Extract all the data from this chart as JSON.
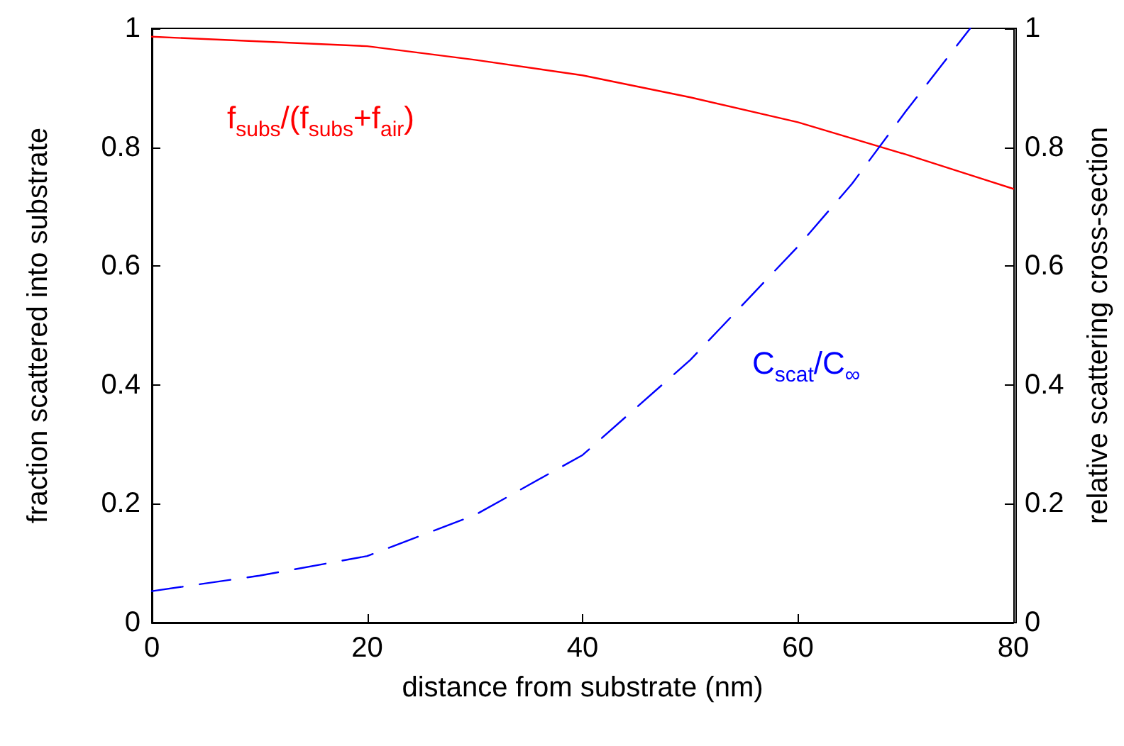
{
  "chart_data": {
    "type": "line",
    "xlabel": "distance from substrate (nm)",
    "ylabel": "fraction scattered into substrate",
    "y2label": "relative scattering cross-section",
    "xlim": [
      0,
      80
    ],
    "xticks": [
      0,
      20,
      40,
      60,
      80
    ],
    "ylim": [
      0,
      1
    ],
    "yticks": [
      0,
      0.2,
      0.4,
      0.6,
      0.8,
      1
    ],
    "y2lim": [
      0,
      1
    ],
    "y2ticks": [
      0,
      0.2,
      0.4,
      0.6,
      0.8,
      1
    ],
    "grid": false,
    "marker": "none",
    "series": [
      {
        "name": "f$_{subs}$/(f$_{subs}$+f$_{air}$)",
        "color": "#ff0000",
        "line_style": "solid",
        "x": [
          0,
          20,
          30,
          40,
          50,
          60,
          70,
          80
        ],
        "values": [
          0.986,
          0.97,
          0.947,
          0.921,
          0.884,
          0.842,
          0.788,
          0.73
        ]
      },
      {
        "name": "C$_{scat}$/C$_{∞}$",
        "color": "#0000ff",
        "line_style": "dashed",
        "x": [
          0,
          10,
          20,
          30,
          40,
          50,
          60,
          65,
          70,
          76
        ],
        "values": [
          0.053,
          0.079,
          0.112,
          0.181,
          0.282,
          0.442,
          0.633,
          0.738,
          0.86,
          1.0
        ]
      }
    ]
  }
}
